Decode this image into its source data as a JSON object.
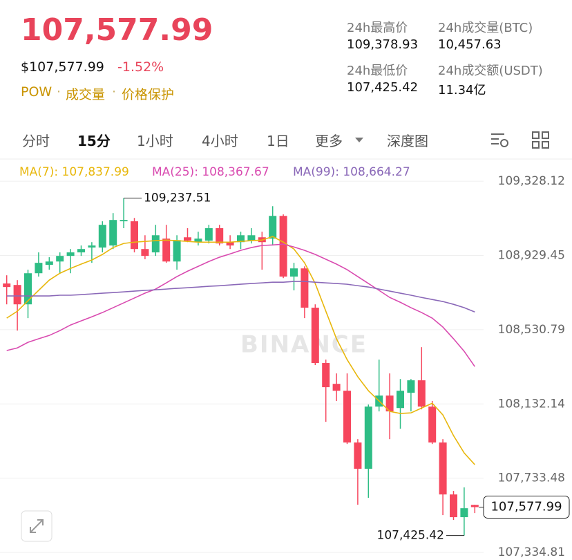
{
  "header": {
    "price": "107,577.99",
    "usd_price": "$107,577.99",
    "change": "-1.52%",
    "tags": [
      "POW",
      "成交量",
      "价格保护"
    ],
    "stats": [
      {
        "label": "24h最高价",
        "value": "109,378.93"
      },
      {
        "label": "24h成交量(BTC)",
        "value": "10,457.63"
      },
      {
        "label": "24h最低价",
        "value": "107,425.42"
      },
      {
        "label": "24h成交额(USDT)",
        "value": "11.34亿"
      }
    ]
  },
  "tabs": [
    "分时",
    "15分",
    "1小时",
    "4小时",
    "1日",
    "更多",
    "深度图"
  ],
  "active_tab": "15分",
  "chart_data": {
    "type": "candlestick",
    "watermark": "BINANCE",
    "up_color": "#2ebd85",
    "down_color": "#f6465d",
    "open": [
      108779,
      108771,
      108667,
      108834,
      108879,
      108897,
      108927,
      108946,
      108972,
      108972,
      108983,
      109113,
      109113,
      108964,
      108946,
      109020,
      108897,
      109027,
      109001,
      109009,
      109076,
      109001,
      109001,
      109009,
      109027,
      109020,
      109142,
      108816,
      108860,
      108649,
      108352,
      108240,
      108203,
      107925,
      107784,
      108118,
      108177,
      108110,
      108192,
      108259,
      108118,
      107925,
      107646,
      107524,
      107590
    ],
    "high": [
      108823,
      108797,
      108853,
      108946,
      108920,
      108946,
      108964,
      108983,
      109001,
      109113,
      109157,
      109237.51,
      109131,
      109038,
      109094,
      109094,
      109038,
      109076,
      109057,
      109094,
      109094,
      109038,
      109057,
      109076,
      109057,
      109194,
      109150,
      108890,
      108871,
      108667,
      108370,
      108296,
      108296,
      107943,
      108129,
      108370,
      108296,
      108266,
      108266,
      108437,
      108148,
      107943,
      107665,
      107684,
      107591
    ],
    "low": [
      108667,
      108526,
      108593,
      108816,
      108853,
      108834,
      108834,
      108927,
      108890,
      108946,
      108964,
      109076,
      108946,
      108909,
      108927,
      108890,
      108853,
      109001,
      108983,
      108994,
      108983,
      108964,
      108964,
      108994,
      108853,
      108983,
      108808,
      108742,
      108593,
      108341,
      108036,
      108148,
      107917,
      107591,
      107628,
      108092,
      107943,
      107999,
      108092,
      108103,
      107917,
      107535,
      107509,
      107425.42,
      107546
    ],
    "close": [
      108760,
      108667,
      108834,
      108890,
      108897,
      108927,
      108946,
      108964,
      108983,
      109094,
      109120,
      109120,
      108964,
      108927,
      109038,
      108897,
      109012,
      109009,
      109020,
      109076,
      108994,
      108983,
      109038,
      109038,
      109001,
      109142,
      108816,
      108860,
      108649,
      108352,
      108222,
      108203,
      107925,
      107784,
      108118,
      108177,
      108092,
      108203,
      108259,
      108118,
      107925,
      107646,
      107524,
      107572,
      107577.99
    ],
    "lines": [
      {
        "name": "MA(7)",
        "legend_label": "MA(7): 107,837.99",
        "color": "#e8b70c",
        "values": [
          108593,
          108630,
          108686,
          108742,
          108797,
          108834,
          108860,
          108883,
          108905,
          108935,
          108972,
          108994,
          109001,
          109005,
          109009,
          109012,
          109009,
          109005,
          109001,
          109001,
          109001,
          109001,
          109005,
          109009,
          109012,
          109031,
          109001,
          108964,
          108890,
          108779,
          108630,
          108482,
          108370,
          108278,
          108203,
          108148,
          108092,
          108081,
          108084,
          108110,
          108136,
          108073,
          107962,
          107869,
          107806
        ]
      },
      {
        "name": "MA(25)",
        "legend_label": "MA(25): 108,367.67",
        "color": "#d94bb0",
        "values": [
          108419,
          108433,
          108463,
          108482,
          108500,
          108526,
          108556,
          108578,
          108600,
          108623,
          108649,
          108675,
          108701,
          108727,
          108749,
          108782,
          108816,
          108845,
          108871,
          108897,
          108920,
          108938,
          108957,
          108972,
          108983,
          108986,
          108990,
          108975,
          108957,
          108935,
          108909,
          108883,
          108853,
          108816,
          108779,
          108742,
          108704,
          108678,
          108649,
          108623,
          108593,
          108545,
          108482,
          108415,
          108333
        ]
      },
      {
        "name": "MA(99)",
        "legend_label": "MA(99): 108,664.27",
        "color": "#8a68b8",
        "values": [
          108712,
          108712,
          108712,
          108712,
          108712,
          108716,
          108716,
          108719,
          108723,
          108727,
          108730,
          108734,
          108738,
          108742,
          108745,
          108749,
          108753,
          108756,
          108760,
          108764,
          108767,
          108771,
          108775,
          108779,
          108782,
          108786,
          108786,
          108790,
          108790,
          108786,
          108782,
          108779,
          108775,
          108767,
          108760,
          108749,
          108738,
          108727,
          108716,
          108704,
          108693,
          108682,
          108667,
          108649,
          108626
        ]
      }
    ],
    "ylim": [
      107294,
      109440
    ],
    "yticks": [
      {
        "value": 109328.12,
        "label": "109,328.12"
      },
      {
        "value": 108929.45,
        "label": "108,929.45"
      },
      {
        "value": 108530.79,
        "label": "108,530.79"
      },
      {
        "value": 108132.14,
        "label": "108,132.14"
      },
      {
        "value": 107733.48,
        "label": "107,733.48"
      },
      {
        "value": 107334.81,
        "label": "107,334.81"
      }
    ],
    "grid": true,
    "high_marker": {
      "value": 109237.51,
      "label": "109,237.51"
    },
    "low_marker": {
      "value": 107425.42,
      "label": "107,425.42"
    },
    "last_price": {
      "value": 107577.99,
      "label": "107,577.99"
    }
  }
}
